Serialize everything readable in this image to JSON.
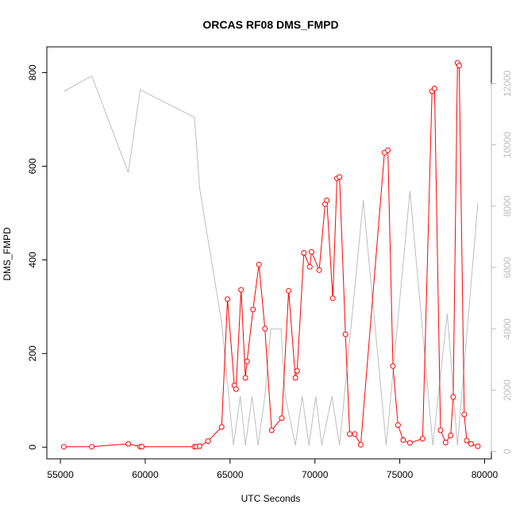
{
  "chart_data": {
    "type": "line",
    "title": "ORCAS RF08 DMS_FMPD",
    "xlabel": "UTC Seconds",
    "ylabel": "DMS_FMPD",
    "xlim": [
      54200,
      80400
    ],
    "ylim": [
      -25,
      855
    ],
    "y2lim": [
      -240,
      13200
    ],
    "x_ticks": [
      55000,
      60000,
      65000,
      70000,
      75000,
      80000
    ],
    "y_ticks": [
      0,
      200,
      400,
      600,
      800
    ],
    "y2_ticks": [
      0,
      2000,
      4000,
      6000,
      8000,
      10000,
      12000
    ],
    "grid": false,
    "legend": "none",
    "colors": {
      "primary": "#ff0000",
      "secondary": "#bebebe",
      "axis": "#000000"
    },
    "series": [
      {
        "axis": "left",
        "style": "line+points",
        "color": "#ff0000",
        "points": [
          [
            55200,
            1
          ],
          [
            56850,
            1
          ],
          [
            59000,
            7
          ],
          [
            59700,
            1
          ],
          [
            59800,
            1
          ],
          [
            62900,
            1
          ],
          [
            63000,
            1
          ],
          [
            63200,
            2
          ],
          [
            63700,
            13
          ],
          [
            64500,
            43
          ],
          [
            64850,
            316
          ],
          [
            65250,
            132
          ],
          [
            65350,
            124
          ],
          [
            65650,
            336
          ],
          [
            65900,
            148
          ],
          [
            66000,
            183
          ],
          [
            66350,
            294
          ],
          [
            66700,
            390
          ],
          [
            67050,
            253
          ],
          [
            67450,
            36
          ],
          [
            68050,
            62
          ],
          [
            68450,
            334
          ],
          [
            68850,
            148
          ],
          [
            68950,
            163
          ],
          [
            69350,
            415
          ],
          [
            69700,
            385
          ],
          [
            69800,
            417
          ],
          [
            70250,
            378
          ],
          [
            70600,
            519
          ],
          [
            70700,
            527
          ],
          [
            71050,
            318
          ],
          [
            71300,
            574
          ],
          [
            71450,
            577
          ],
          [
            71800,
            241
          ],
          [
            72050,
            28
          ],
          [
            72350,
            28
          ],
          [
            72700,
            5
          ],
          [
            74100,
            629
          ],
          [
            74300,
            634
          ],
          [
            74600,
            173
          ],
          [
            74900,
            47
          ],
          [
            75200,
            15
          ],
          [
            75600,
            9
          ],
          [
            76350,
            18
          ],
          [
            76900,
            760
          ],
          [
            77050,
            766
          ],
          [
            77400,
            36
          ],
          [
            77700,
            10
          ],
          [
            78000,
            25
          ],
          [
            78150,
            107
          ],
          [
            78400,
            821
          ],
          [
            78500,
            815
          ],
          [
            78800,
            70
          ],
          [
            78950,
            14
          ],
          [
            79200,
            7
          ],
          [
            79600,
            2
          ]
        ]
      },
      {
        "axis": "right",
        "style": "line",
        "color": "#bebebe",
        "points": [
          [
            55200,
            11750
          ],
          [
            56850,
            12250
          ],
          [
            59000,
            9100
          ],
          [
            59700,
            11800
          ],
          [
            62900,
            10900
          ],
          [
            63200,
            8600
          ],
          [
            64500,
            4200
          ],
          [
            65200,
            200
          ],
          [
            65600,
            1800
          ],
          [
            65900,
            200
          ],
          [
            66300,
            1800
          ],
          [
            66650,
            200
          ],
          [
            67050,
            1800
          ],
          [
            67400,
            4000
          ],
          [
            68000,
            4000
          ],
          [
            68250,
            1800
          ],
          [
            68850,
            200
          ],
          [
            69250,
            1800
          ],
          [
            69650,
            200
          ],
          [
            70050,
            1800
          ],
          [
            70400,
            200
          ],
          [
            71000,
            1800
          ],
          [
            71450,
            200
          ],
          [
            72850,
            8200
          ],
          [
            74200,
            200
          ],
          [
            75600,
            8500
          ],
          [
            76950,
            200
          ],
          [
            77800,
            4500
          ],
          [
            78400,
            200
          ],
          [
            79600,
            8100
          ]
        ]
      }
    ]
  }
}
